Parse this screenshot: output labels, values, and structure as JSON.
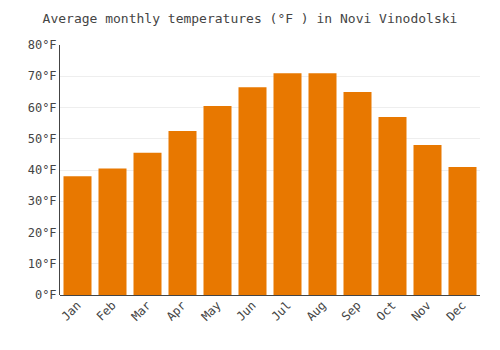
{
  "chart_data": {
    "type": "bar",
    "title": "Average monthly temperatures (°F ) in Novi Vinodolski",
    "categories": [
      "Jan",
      "Feb",
      "Mar",
      "Apr",
      "May",
      "Jun",
      "Jul",
      "Aug",
      "Sep",
      "Oct",
      "Nov",
      "Dec"
    ],
    "values": [
      38,
      40.5,
      45.5,
      52.5,
      60.5,
      66.5,
      71,
      71,
      65,
      57,
      48,
      41
    ],
    "color": "#E87800",
    "ylim": [
      0,
      80
    ],
    "yticks": [
      {
        "value": 0,
        "label": "0°F"
      },
      {
        "value": 10,
        "label": "10°F"
      },
      {
        "value": 20,
        "label": "20°F"
      },
      {
        "value": 30,
        "label": "30°F"
      },
      {
        "value": 40,
        "label": "40°F"
      },
      {
        "value": 50,
        "label": "50°F"
      },
      {
        "value": 60,
        "label": "60°F"
      },
      {
        "value": 70,
        "label": "70°F"
      },
      {
        "value": 80,
        "label": "80°F"
      }
    ],
    "grid": true
  }
}
